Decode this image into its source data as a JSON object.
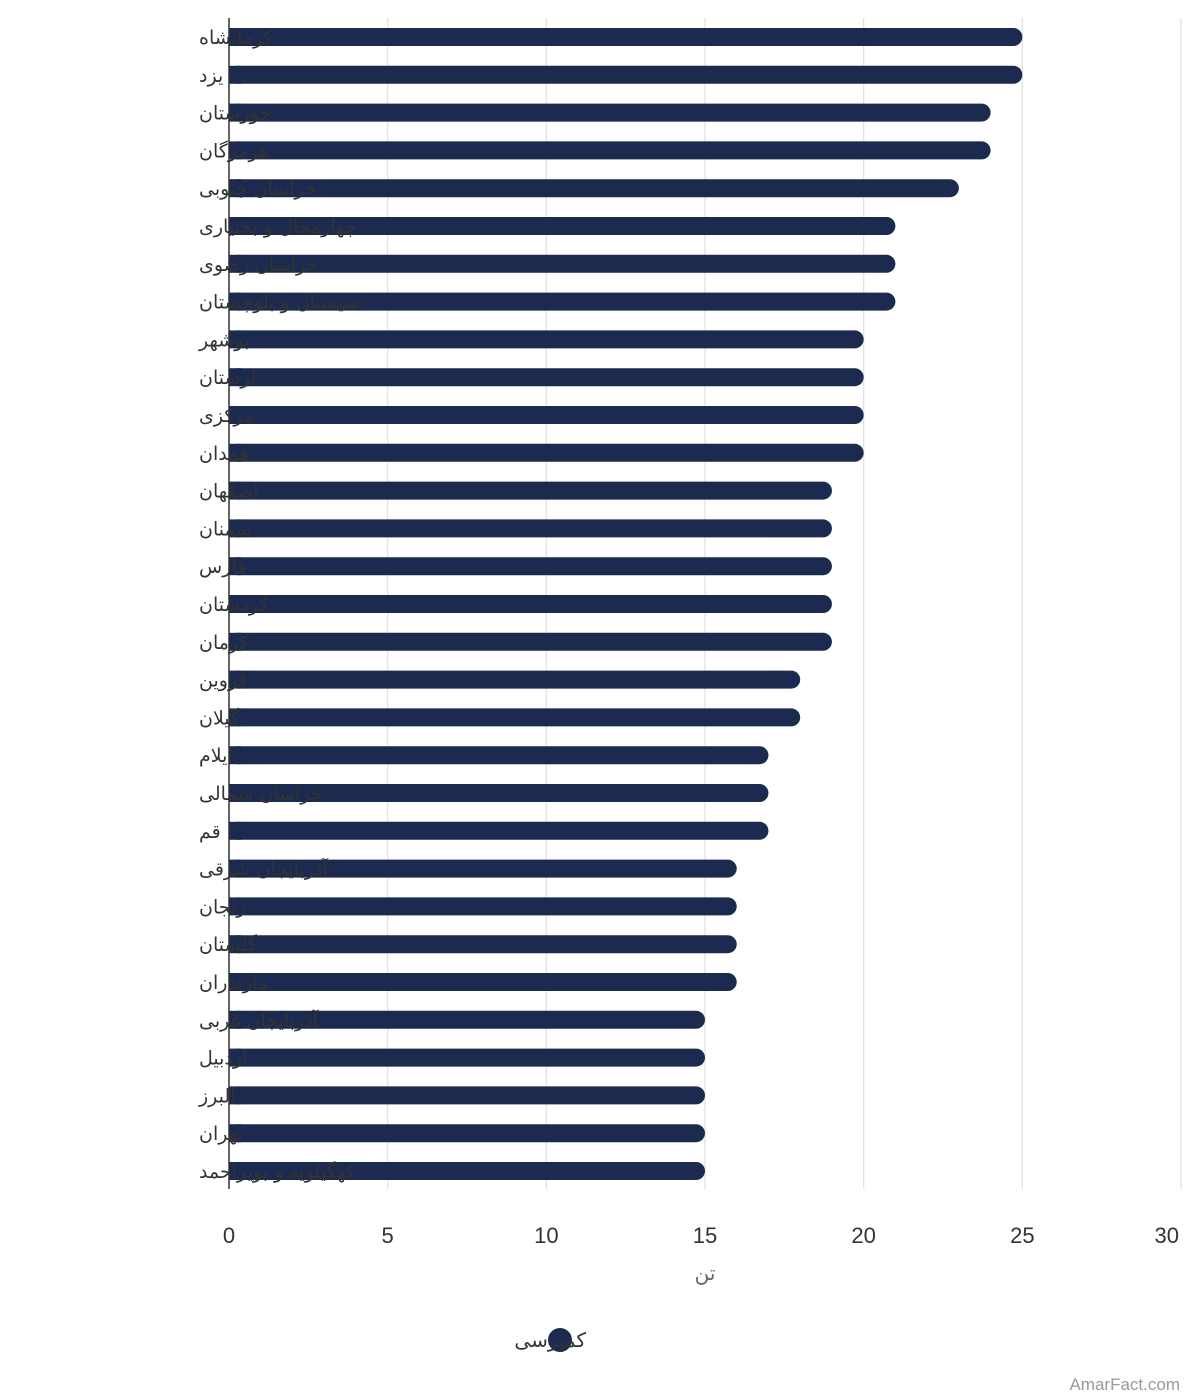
{
  "chart_data": {
    "type": "bar",
    "orientation": "horizontal",
    "categories": [
      "کرمانشاه",
      "یزد",
      "خوزستان",
      "هرمزگان",
      "خراسان جنوبی",
      "چهارمحال و بختیاری",
      "خراسان رضوی",
      "سیستان و بلوچستان",
      "بوشهر",
      "لرستان",
      "مرکزی",
      "همدان",
      "اصفهان",
      "سمنان",
      "فارس",
      "کردستان",
      "کرمان",
      "قزوین",
      "گیلان",
      "ایلام",
      "خراسان شمالی",
      "قم",
      "آذربایجان شرقی",
      "زنجان",
      "گلستان",
      "مازندران",
      "آذربایجان غربی",
      "اردبیل",
      "البرز",
      "تهران",
      "کهگیلویه و بویراحمد"
    ],
    "series": [
      {
        "name": "کمپرسی",
        "color": "#1b2a4e",
        "values": [
          25,
          25,
          24,
          24,
          23,
          21,
          21,
          21,
          20,
          20,
          20,
          20,
          19,
          19,
          19,
          19,
          19,
          18,
          18,
          17,
          17,
          17,
          16,
          16,
          16,
          16,
          15,
          15,
          15,
          15,
          15
        ]
      }
    ],
    "xlabel": "تن",
    "xlim": [
      0,
      30
    ],
    "ticks": [
      0,
      5,
      10,
      15,
      20,
      25,
      30
    ],
    "grid": true,
    "legend": "bottom-center"
  },
  "credit": "AmarFact.com"
}
